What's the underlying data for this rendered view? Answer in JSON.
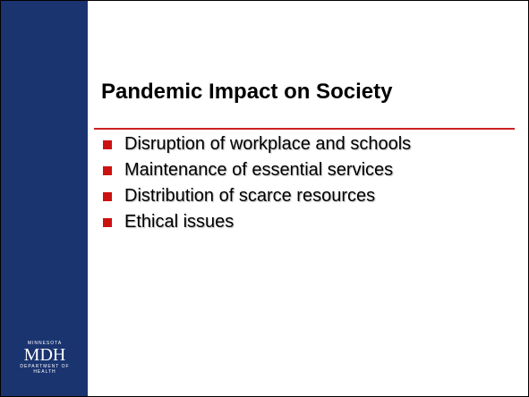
{
  "slide": {
    "title": "Pandemic Impact on Society",
    "bullets": [
      "Disruption of workplace and schools",
      "Maintenance of essential services",
      "Distribution of scarce resources",
      "Ethical issues"
    ],
    "logo": {
      "top": "MINNESOTA",
      "main": "MDH",
      "bottom": "DEPARTMENT OF HEALTH"
    }
  }
}
